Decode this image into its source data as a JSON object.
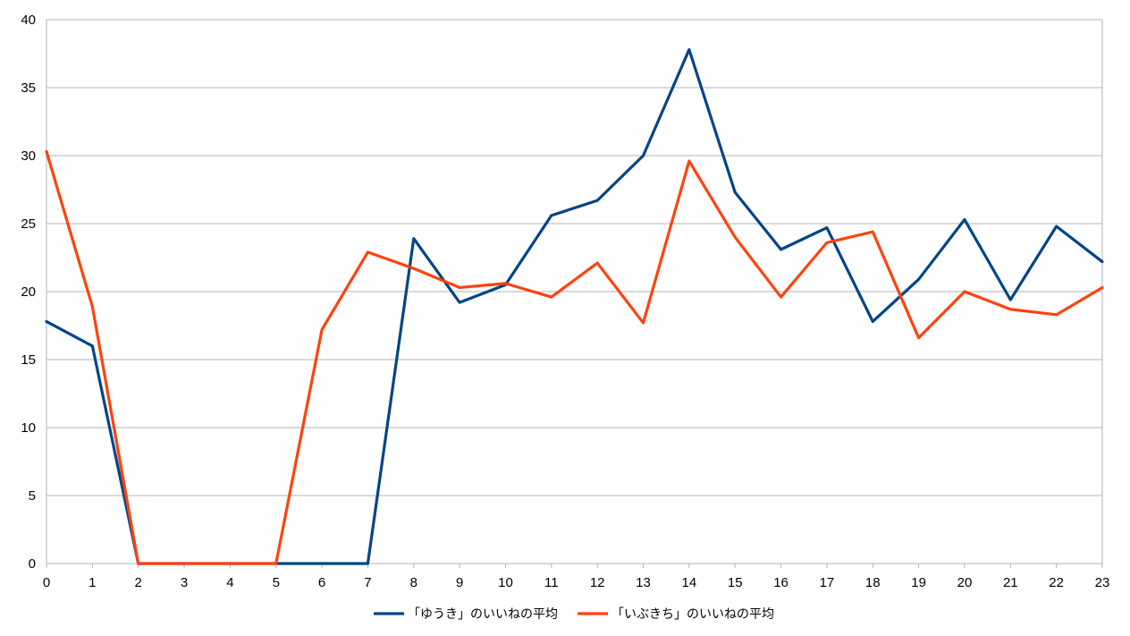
{
  "chart_data": {
    "type": "line",
    "title": "",
    "xlabel": "",
    "ylabel": "",
    "x": [
      0,
      1,
      2,
      3,
      4,
      5,
      6,
      7,
      8,
      9,
      10,
      11,
      12,
      13,
      14,
      15,
      16,
      17,
      18,
      19,
      20,
      21,
      22,
      23
    ],
    "xlim": [
      0,
      23
    ],
    "ylim": [
      0,
      40
    ],
    "yticks": [
      0,
      5,
      10,
      15,
      20,
      25,
      30,
      35,
      40
    ],
    "grid": true,
    "legend": "bottom-center",
    "series": [
      {
        "name": "「ゆうき」のいいねの平均",
        "color": "#004586",
        "values": [
          17.8,
          16.0,
          0,
          0,
          0,
          0,
          0,
          0,
          23.9,
          19.2,
          20.5,
          25.6,
          26.7,
          30.0,
          37.8,
          27.3,
          23.1,
          24.7,
          17.8,
          20.9,
          25.3,
          19.4,
          24.8,
          22.2
        ]
      },
      {
        "name": "「いぶきち」のいいねの平均",
        "color": "#ff420e",
        "values": [
          30.3,
          18.9,
          0,
          0,
          0,
          0,
          17.2,
          22.9,
          21.7,
          20.3,
          20.6,
          19.6,
          22.1,
          17.7,
          29.6,
          24.0,
          19.6,
          23.6,
          24.4,
          16.6,
          20.0,
          18.7,
          18.3,
          20.3
        ]
      }
    ]
  }
}
